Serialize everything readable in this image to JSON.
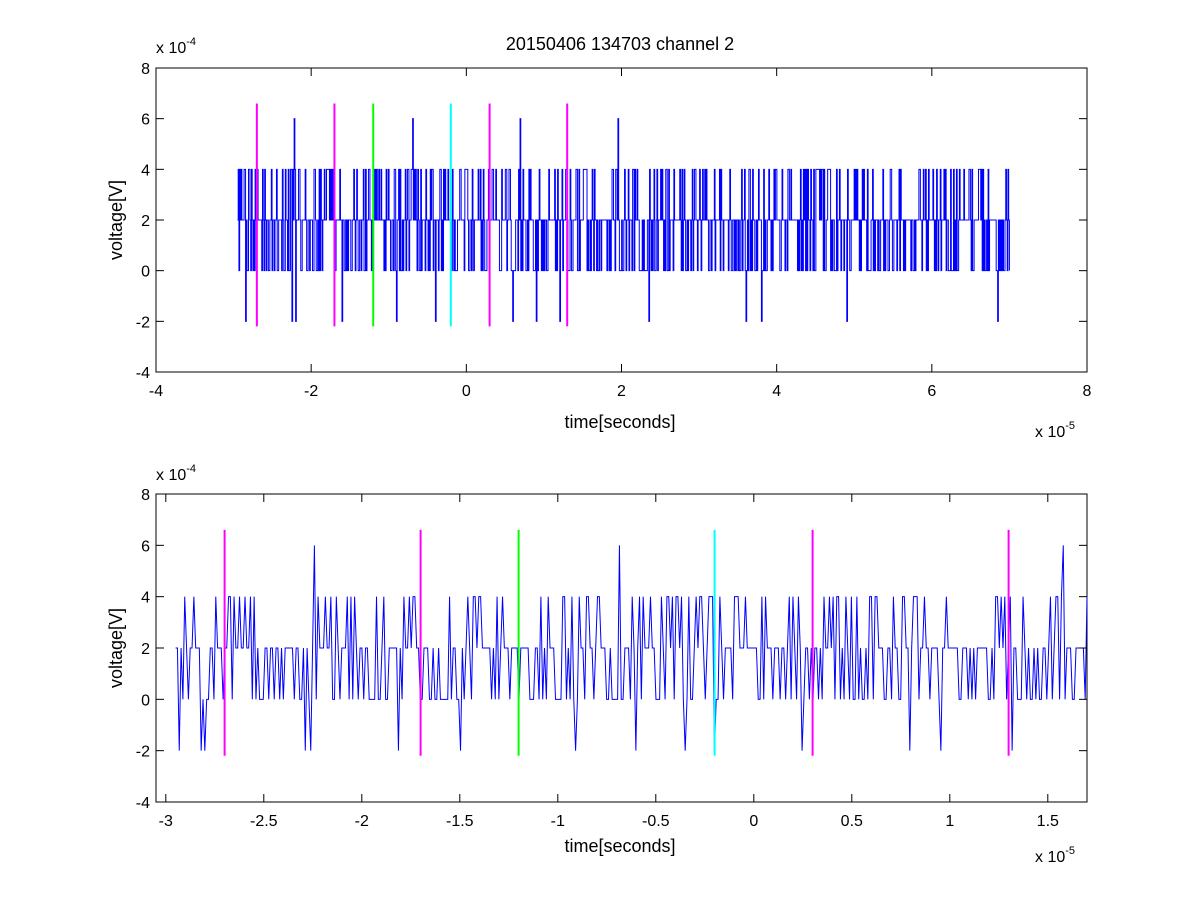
{
  "chart_data": [
    {
      "type": "line",
      "title": "20150406 134703 channel 2",
      "xlabel": "time[seconds]",
      "ylabel": "voltage[V]",
      "x_multiplier": "x 10",
      "x_exponent": "-5",
      "y_multiplier": "x 10",
      "y_exponent": "-4",
      "xlim": [
        -4e-05,
        8e-05
      ],
      "ylim": [
        -0.0004,
        0.0008
      ],
      "xticks": [
        -4e-05,
        -2e-05,
        0,
        2e-05,
        4e-05,
        6e-05,
        8e-05
      ],
      "xtick_labels": [
        "-4",
        "-2",
        "0",
        "2",
        "4",
        "6",
        "8"
      ],
      "yticks": [
        -0.0004,
        -0.0002,
        0,
        0.0002,
        0.0004,
        0.0006,
        0.0008
      ],
      "ytick_labels": [
        "-4",
        "-2",
        "0",
        "2",
        "4",
        "6",
        "8"
      ],
      "grid": false,
      "series": [
        {
          "color": "#0000ff",
          "x_start": -2.95e-05,
          "x_end": 7e-05,
          "levels": [
            -0.0002,
            0,
            0.0002,
            0.0004,
            0.0006
          ],
          "peaks": [
            [
              -2.22e-05,
              0.0006
            ],
            [
              -6.9e-06,
              0.0006
            ],
            [
              6.9e-06,
              0.0006
            ],
            [
              1.95e-05,
              0.0006
            ]
          ],
          "troughs": [
            [
              -2.95e-05,
              -0.0002
            ],
            [
              -2.85e-05,
              -0.0002
            ],
            [
              -2.25e-05,
              -0.0002
            ],
            [
              -2.2e-05,
              -0.0002
            ],
            [
              -1.6e-05,
              -0.0002
            ],
            [
              -9e-06,
              -0.0002
            ],
            [
              -4e-06,
              -0.0002
            ],
            [
              6e-06,
              -0.0002
            ],
            [
              9e-06,
              -0.0002
            ],
            [
              1.2e-05,
              -0.0002
            ],
            [
              2.35e-05,
              -0.0002
            ],
            [
              3.6e-05,
              -0.0002
            ],
            [
              3.8e-05,
              -0.0002
            ],
            [
              4.9e-05,
              -0.0002
            ],
            [
              6.85e-05,
              -0.0002
            ]
          ]
        },
        {
          "color": "#ff00ff",
          "kind": "vertical-markers",
          "x": [
            -2.7e-05,
            -1.7e-05,
            3e-06,
            1.3e-05
          ],
          "y_range": [
            -0.00022,
            0.00066
          ]
        },
        {
          "color": "#00ff00",
          "kind": "vertical-markers",
          "x": [
            -1.2e-05
          ],
          "y_range": [
            -0.00022,
            0.00066
          ]
        },
        {
          "color": "#00ffff",
          "kind": "vertical-markers",
          "x": [
            -2e-06
          ],
          "y_range": [
            -0.00022,
            0.00066
          ]
        }
      ]
    },
    {
      "type": "line",
      "title": "",
      "xlabel": "time[seconds]",
      "ylabel": "voltage[V]",
      "x_multiplier": "x 10",
      "x_exponent": "-5",
      "y_multiplier": "x 10",
      "y_exponent": "-4",
      "xlim": [
        -3.05e-05,
        1.7e-05
      ],
      "ylim": [
        -0.0004,
        0.0008
      ],
      "xticks": [
        -3e-05,
        -2.5e-05,
        -2e-05,
        -1.5e-05,
        -1e-05,
        -5e-06,
        0,
        5e-06,
        1e-05,
        1.5e-05
      ],
      "xtick_labels": [
        "-3",
        "-2.5",
        "-2",
        "-1.5",
        "-1",
        "-0.5",
        "0",
        "0.5",
        "1",
        "1.5"
      ],
      "yticks": [
        -0.0004,
        -0.0002,
        0,
        0.0002,
        0.0004,
        0.0006,
        0.0008
      ],
      "ytick_labels": [
        "-4",
        "-2",
        "0",
        "2",
        "4",
        "6",
        "8"
      ],
      "grid": false,
      "series": [
        {
          "color": "#0000ff",
          "x_start": -2.95e-05,
          "x_end": 1.7e-05,
          "levels": [
            -0.0002,
            0,
            0.0002,
            0.0004,
            0.0006
          ],
          "peaks": [
            [
              -2.24e-05,
              0.0006
            ],
            [
              -6.9e-06,
              0.0006
            ],
            [
              8e-06,
              0.0006
            ],
            [
              1.58e-05,
              0.0006
            ]
          ],
          "troughs": [
            [
              -2.93e-05,
              -0.0002
            ],
            [
              -2.82e-05,
              -0.0002
            ],
            [
              -2.8e-05,
              -0.0002
            ],
            [
              -2.29e-05,
              -0.0002
            ],
            [
              -2.26e-05,
              -0.0002
            ],
            [
              -1.81e-05,
              -0.0002
            ],
            [
              -1.5e-05,
              -0.0002
            ],
            [
              -9.1e-06,
              -0.0002
            ],
            [
              -6e-06,
              -0.0002
            ],
            [
              -3.5e-06,
              -0.0002
            ],
            [
              -2e-06,
              -0.0002
            ],
            [
              2.5e-06,
              -0.0002
            ],
            [
              8e-06,
              -0.0002
            ],
            [
              9.5e-06,
              -0.0002
            ],
            [
              1.32e-05,
              -0.0002
            ]
          ]
        },
        {
          "color": "#ff00ff",
          "kind": "vertical-markers",
          "x": [
            -2.7e-05,
            -1.7e-05,
            3e-06,
            1.3e-05
          ],
          "y_range": [
            -0.00022,
            0.00066
          ]
        },
        {
          "color": "#00ff00",
          "kind": "vertical-markers",
          "x": [
            -1.2e-05
          ],
          "y_range": [
            -0.00022,
            0.00066
          ]
        },
        {
          "color": "#00ffff",
          "kind": "vertical-markers",
          "x": [
            -2e-06
          ],
          "y_range": [
            -0.00022,
            0.00066
          ]
        }
      ]
    }
  ]
}
